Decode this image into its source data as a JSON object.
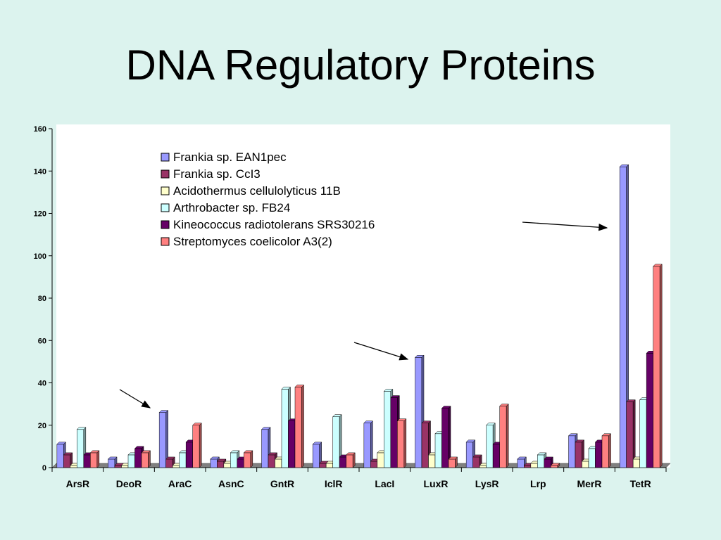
{
  "slide": {
    "title": "DNA Regulatory Proteins"
  },
  "chart_data": {
    "type": "bar",
    "categories": [
      "ArsR",
      "DeoR",
      "AraC",
      "AsnC",
      "GntR",
      "IclR",
      "LacI",
      "LuxR",
      "LysR",
      "Lrp",
      "MerR",
      "TetR"
    ],
    "series": [
      {
        "name": "Frankia sp. EAN1pec",
        "color": "#9999ff",
        "values": [
          11,
          4,
          26,
          4,
          18,
          11,
          21,
          52,
          12,
          4,
          15,
          142
        ]
      },
      {
        "name": "Frankia sp. CcI3",
        "color": "#993366",
        "values": [
          6,
          1,
          4,
          3,
          6,
          2,
          3,
          21,
          5,
          1,
          12,
          31
        ]
      },
      {
        "name": "Acidothermus cellulolyticus 11B",
        "color": "#ffffcc",
        "values": [
          1,
          1,
          1,
          2,
          4,
          2,
          7,
          6,
          1,
          2,
          3,
          4
        ]
      },
      {
        "name": "Arthrobacter sp. FB24",
        "color": "#ccffff",
        "values": [
          18,
          6,
          7,
          7,
          37,
          24,
          36,
          16,
          20,
          6,
          9,
          32
        ]
      },
      {
        "name": "Kineococcus radiotolerans SRS30216",
        "color": "#660066",
        "values": [
          6,
          9,
          12,
          4,
          22,
          5,
          33,
          28,
          11,
          4,
          12,
          54
        ]
      },
      {
        "name": "Streptomyces coelicolor A3(2)",
        "color": "#ff8080",
        "values": [
          7,
          7,
          20,
          7,
          38,
          6,
          22,
          4,
          29,
          1,
          15,
          95
        ]
      }
    ],
    "y_ticks": [
      "0",
      "20",
      "40",
      "60",
      "80",
      "100",
      "120",
      "140",
      "160"
    ],
    "ylim": [
      0,
      160
    ],
    "legend_position": "top-center",
    "plot_background": "#ffffff",
    "annotations": [
      {
        "type": "arrow",
        "points_to": "AraC"
      },
      {
        "type": "arrow",
        "points_to": "LuxR"
      },
      {
        "type": "arrow",
        "points_to": "TetR"
      }
    ]
  }
}
